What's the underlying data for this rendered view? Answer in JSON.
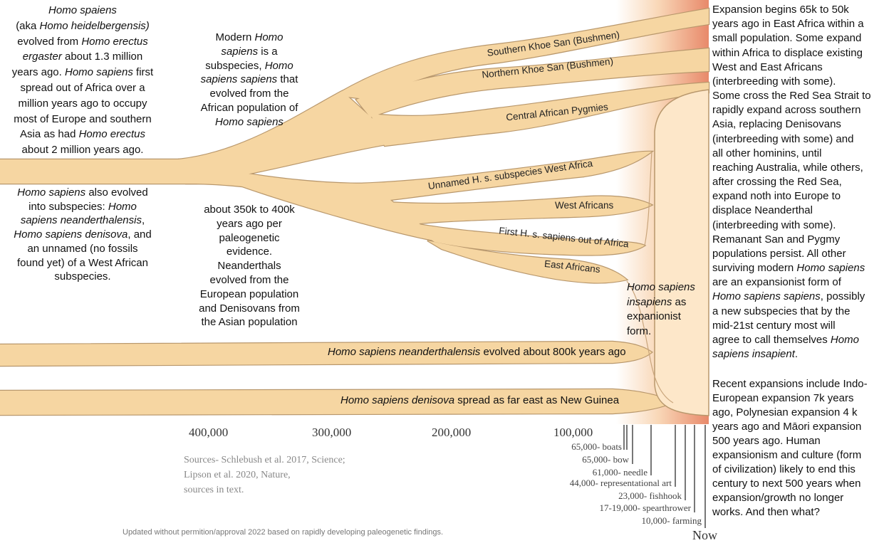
{
  "colors": {
    "branch_fill": "#f6d6a2",
    "branch_stroke": "#b8976c",
    "cream": "#fde7c9",
    "gradient_end": "#e8896a"
  },
  "blocks": {
    "left_top": [
      [
        {
          "t": "Homo spaiens",
          "i": true
        }
      ],
      [
        {
          "t": "(aka "
        },
        {
          "t": "Homo heidelbergensis)",
          "i": true
        }
      ],
      [
        {
          "t": "evolved from "
        },
        {
          "t": "Homo erectus",
          "i": true
        }
      ],
      [
        {
          "t": "ergaster",
          "i": true
        },
        {
          "t": " about 1.3 million"
        }
      ],
      [
        {
          "t": "years ago. "
        },
        {
          "t": "Homo sapiens",
          "i": true
        },
        {
          "t": " first"
        }
      ],
      [
        {
          "t": "spread out of Africa over a"
        }
      ],
      [
        {
          "t": "million years ago to occupy"
        }
      ],
      [
        {
          "t": "most of Europe and southern"
        }
      ],
      [
        {
          "t": "Asia as had "
        },
        {
          "t": "Homo erectus",
          "i": true
        }
      ],
      [
        {
          "t": "about 2 million years ago."
        }
      ]
    ],
    "left_bottom": [
      [
        {
          "t": "Homo sapiens",
          "i": true
        },
        {
          "t": " also evolved"
        }
      ],
      [
        {
          "t": "into subspecies: "
        },
        {
          "t": "Homo",
          "i": true
        }
      ],
      [
        {
          "t": "sapiens neanderthalensis",
          "i": true
        },
        {
          "t": ","
        }
      ],
      [
        {
          "t": "Homo sapiens denisova",
          "i": true
        },
        {
          "t": ", and"
        }
      ],
      [
        {
          "t": "an unnamed (no fossils"
        }
      ],
      [
        {
          "t": "found yet) of a West African"
        }
      ],
      [
        {
          "t": "subspecies."
        }
      ]
    ],
    "mid_top": [
      [
        {
          "t": "Modern "
        },
        {
          "t": "Homo",
          "i": true
        }
      ],
      [
        {
          "t": "sapiens",
          "i": true
        },
        {
          "t": " is a"
        }
      ],
      [
        {
          "t": "subspecies, "
        },
        {
          "t": "Homo",
          "i": true
        }
      ],
      [
        {
          "t": "sapiens sapiens",
          "i": true
        },
        {
          "t": " that"
        }
      ],
      [
        {
          "t": "evolved from the"
        }
      ],
      [
        {
          "t": "African population of"
        }
      ],
      [
        {
          "t": "Homo sapiens",
          "i": true
        }
      ]
    ],
    "mid_bottom": [
      [
        {
          "t": "about 350k to 400k"
        }
      ],
      [
        {
          "t": "years ago per"
        }
      ],
      [
        {
          "t": "paleogenetic"
        }
      ],
      [
        {
          "t": "evidence."
        }
      ],
      [
        {
          "t": "Neanderthals"
        }
      ],
      [
        {
          "t": "evolved from the"
        }
      ],
      [
        {
          "t": "European population"
        }
      ],
      [
        {
          "t": "and Denisovans from"
        }
      ],
      [
        {
          "t": "the Asian population"
        }
      ]
    ],
    "right_top": [
      [
        {
          "t": "Expansion begins 65k to 50k"
        }
      ],
      [
        {
          "t": "years ago in East Africa within a"
        }
      ],
      [
        {
          "t": "small population. Some expand"
        }
      ],
      [
        {
          "t": "within Africa to displace existing"
        }
      ],
      [
        {
          "t": "West and East Africans"
        }
      ],
      [
        {
          "t": "(interbreeding with some)."
        }
      ],
      [
        {
          "t": "Some cross the Red Sea Strait to"
        }
      ],
      [
        {
          "t": "rapidly expand across southern"
        }
      ],
      [
        {
          "t": "Asia, replacing Denisovans"
        }
      ],
      [
        {
          "t": "(interbreeding with some) and"
        }
      ],
      [
        {
          "t": "all other hominins, until"
        }
      ],
      [
        {
          "t": "reaching Australia, while others,"
        }
      ],
      [
        {
          "t": "after crossing the Red Sea,"
        }
      ],
      [
        {
          "t": "expand noth into Europe to"
        }
      ],
      [
        {
          "t": "displace Neanderthal"
        }
      ],
      [
        {
          "t": "(interbreeding with some)."
        }
      ],
      [
        {
          "t": "Remanant San and Pygmy"
        }
      ],
      [
        {
          "t": "populations persist. All other"
        }
      ],
      [
        {
          "t": "surviving modern "
        },
        {
          "t": "Homo sapiens",
          "i": true
        }
      ],
      [
        {
          "t": "are an expansionist form of"
        }
      ],
      [
        {
          "t": "Homo sapiens sapiens",
          "i": true
        },
        {
          "t": ",  possibly"
        }
      ],
      [
        {
          "t": "a new subspecies that by the"
        }
      ],
      [
        {
          "t": "mid-21st century most will"
        }
      ],
      [
        {
          "t": "agree to call themselves "
        },
        {
          "t": "Homo",
          "i": true
        }
      ],
      [
        {
          "t": "sapiens insapient",
          "i": true
        },
        {
          "t": "."
        }
      ]
    ],
    "right_bottom": [
      [
        {
          "t": "Recent expansions include Indo-"
        }
      ],
      [
        {
          "t": "European expansion 7k years"
        }
      ],
      [
        {
          "t": "ago, Polynesian expansion 4 k"
        }
      ],
      [
        {
          "t": "years ago and  Māori expansion"
        }
      ],
      [
        {
          "t": "500 years ago. Human"
        }
      ],
      [
        {
          "t": "expansionism and culture (form"
        }
      ],
      [
        {
          "t": "of civilization) likely to end this"
        }
      ],
      [
        {
          "t": "century to next 500 years when"
        }
      ],
      [
        {
          "t": "expansion/growth  no longer"
        }
      ],
      [
        {
          "t": "works. And then what?"
        }
      ]
    ],
    "insapiens": [
      [
        {
          "t": "Homo sapiens",
          "i": true
        }
      ],
      [
        {
          "t": "insapiens",
          "i": true
        },
        {
          "t": " as"
        }
      ],
      [
        {
          "t": "expanionist"
        }
      ],
      [
        {
          "t": "form."
        }
      ]
    ],
    "neanderthal_label": [
      [
        {
          "t": "Homo sapiens neanderthalensis",
          "i": true
        },
        {
          "t": " evolved about 800k years ago"
        }
      ]
    ],
    "denisova_label": [
      [
        {
          "t": "Homo sapiens denisova",
          "i": true
        },
        {
          "t": " spread as far east as New Guinea"
        }
      ]
    ]
  },
  "branch_labels": {
    "southern": "Southern Khoe San (Bushmen)",
    "northern": "Northern Khoe San (Bushmen)",
    "central": "Central African Pygmies",
    "unnamed": "Unnamed H. s. subspecies West Africa",
    "west": "West Africans",
    "first_out": "First H. s. sapiens out of Africa",
    "east": "East Africans"
  },
  "axis": {
    "ticks": [
      "400,000",
      "300,000",
      "200,000",
      "100,000"
    ],
    "now": "Now"
  },
  "timeline": [
    "65,000- boats",
    "65,000- bow",
    "61,000- needle",
    "44,000- representational art",
    "23,000- fishhook",
    "17-19,000- spearthrower",
    "10,000- farming"
  ],
  "sources": [
    "Sources- Schlebush et al. 2017, Science;",
    "Lipson et al. 2020, Nature,",
    "sources in text."
  ],
  "footnote": "Updated without permition/approval  2022 based on rapidly developing paleogenetic findings."
}
